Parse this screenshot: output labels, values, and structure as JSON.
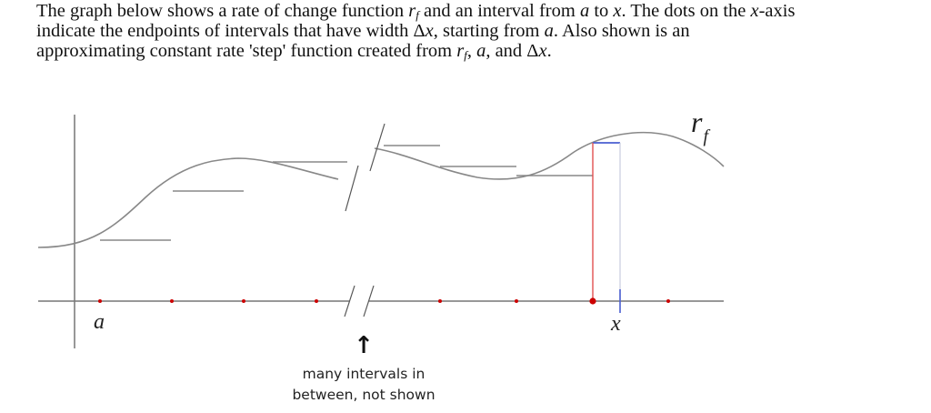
{
  "description": {
    "line1_a": "The graph below shows a rate of change function ",
    "line1_r": "r",
    "line1_f": "f",
    "line1_b": " and an interval from ",
    "line1_avar": "a",
    "line1_c": " to ",
    "line1_xvar": "x",
    "line1_d": ". The dots on the ",
    "line1_xaxis": "x",
    "line1_e": "-axis",
    "line2_a": "indicate the endpoints of intervals that have width Δ",
    "line2_x": "x",
    "line2_b": ", starting from ",
    "line2_avar": "a",
    "line2_c": ".  Also shown is an",
    "line3_a": "approximating constant rate 'step' function created from ",
    "line3_r": "r",
    "line3_f": "f",
    "line3_b": ", ",
    "line3_avar": "a",
    "line3_c": ", and Δ",
    "line3_x": "x",
    "line3_d": "."
  },
  "figure": {
    "curve_label_r": "r",
    "curve_label_f": "f",
    "a_label": "a",
    "x_label": "x",
    "arrow_glyph": "↑",
    "annotation_line1": "many intervals in",
    "annotation_line2": "between, not shown",
    "colors": {
      "curve": "#888888",
      "axis": "#777777",
      "dot": "#cc0000",
      "red_line": "#e05050",
      "blue_line": "#4a5ed0",
      "text": "#222222"
    }
  }
}
